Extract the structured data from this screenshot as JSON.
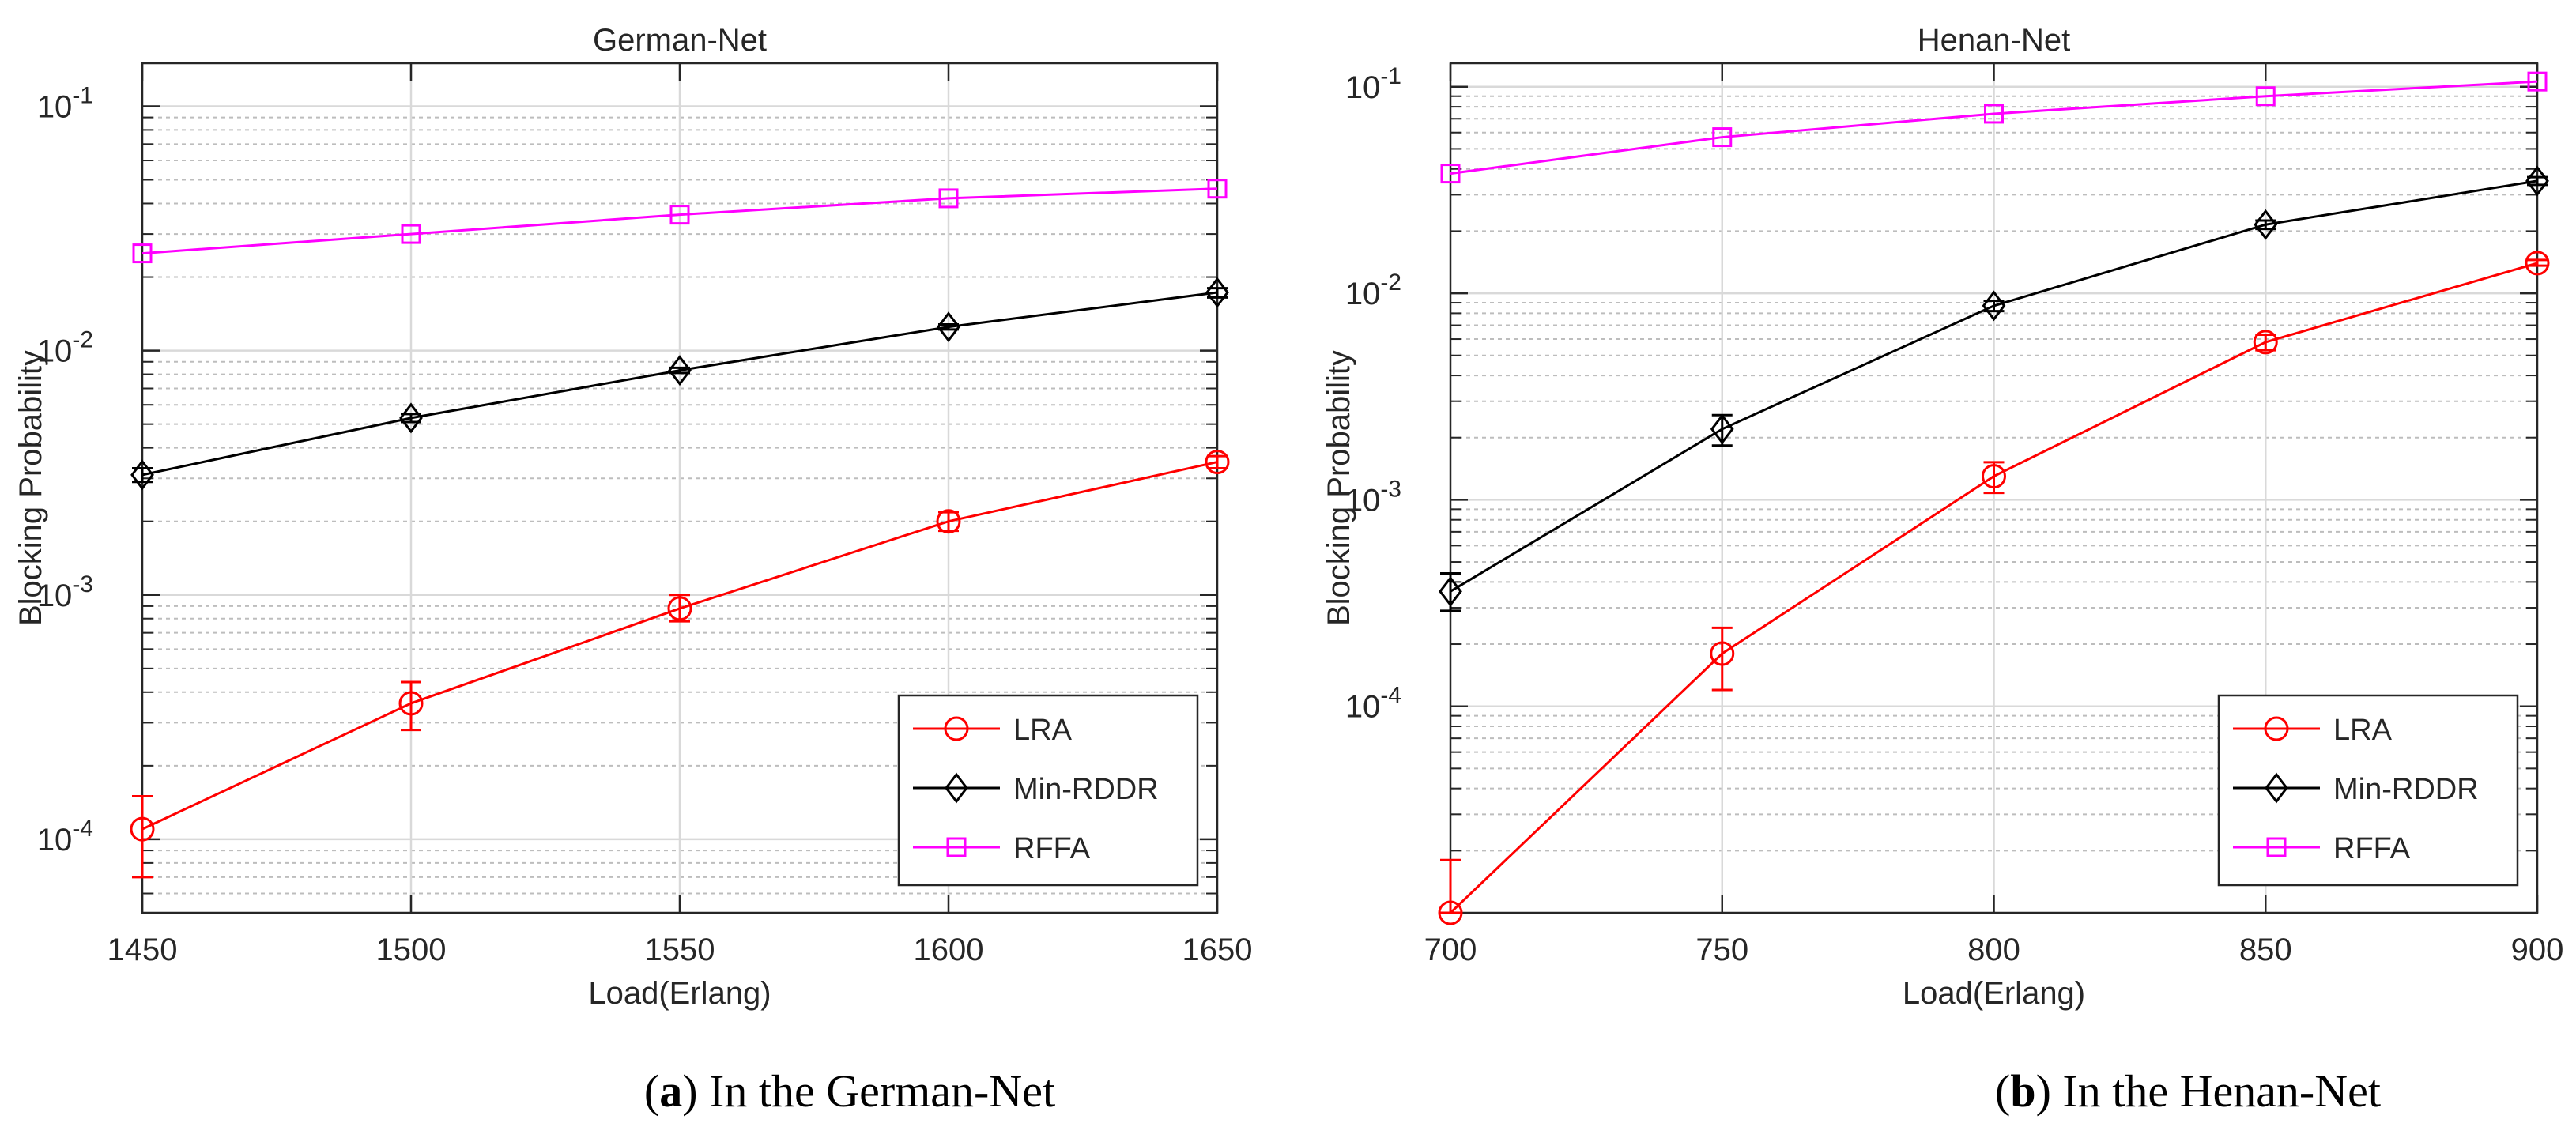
{
  "chart_data": [
    {
      "type": "line",
      "title": "German-Net",
      "xlabel": "Load(Erlang)",
      "ylabel": "Blocking Probability",
      "yscale": "log",
      "xlim": [
        1450,
        1650
      ],
      "ylim": [
        5e-05,
        0.15
      ],
      "grid": true,
      "x": [
        1450,
        1500,
        1550,
        1600,
        1650
      ],
      "x_ticks": [
        "1450",
        "1500",
        "1550",
        "1600",
        "1650"
      ],
      "y_ticks": [
        {
          "base": "10",
          "exp": "-4",
          "value": 0.0001
        },
        {
          "base": "10",
          "exp": "-3",
          "value": 0.001
        },
        {
          "base": "10",
          "exp": "-2",
          "value": 0.01
        },
        {
          "base": "10",
          "exp": "-1",
          "value": 0.1
        }
      ],
      "legend_position": "bottom-right",
      "series": [
        {
          "name": "LRA",
          "color": "#ff0000",
          "marker": "circle",
          "values": [
            0.00011,
            0.00036,
            0.00088,
            0.002,
            0.0035
          ],
          "err_low": [
            7e-05,
            0.00028,
            0.00078,
            0.00183,
            0.0033
          ],
          "err_high": [
            0.00015,
            0.00044,
            0.001,
            0.00218,
            0.0037
          ]
        },
        {
          "name": "Min-RDDR",
          "color": "#000000",
          "marker": "diamond",
          "values": [
            0.0031,
            0.0053,
            0.0083,
            0.0125,
            0.0173
          ],
          "err_low": [
            0.0029,
            0.0051,
            0.0081,
            0.0122,
            0.0165
          ],
          "err_high": [
            0.0033,
            0.0055,
            0.0085,
            0.0128,
            0.018
          ]
        },
        {
          "name": "RFFA",
          "color": "#ff00ff",
          "marker": "square",
          "values": [
            0.025,
            0.03,
            0.036,
            0.042,
            0.046
          ],
          "err_low": [
            0.025,
            0.03,
            0.036,
            0.042,
            0.046
          ],
          "err_high": [
            0.025,
            0.03,
            0.036,
            0.042,
            0.046
          ]
        }
      ],
      "caption_label": "a",
      "caption_text": ") In the German-Net"
    },
    {
      "type": "line",
      "title": "Henan-Net",
      "xlabel": "Load(Erlang)",
      "ylabel": "Blocking Probability",
      "yscale": "log",
      "xlim": [
        700,
        900
      ],
      "ylim": [
        1e-05,
        0.13
      ],
      "grid": true,
      "x": [
        700,
        750,
        800,
        850,
        900
      ],
      "x_ticks": [
        "700",
        "750",
        "800",
        "850",
        "900"
      ],
      "y_ticks": [
        {
          "base": "10",
          "exp": "-4",
          "value": 0.0001
        },
        {
          "base": "10",
          "exp": "-3",
          "value": 0.001
        },
        {
          "base": "10",
          "exp": "-2",
          "value": 0.01
        },
        {
          "base": "10",
          "exp": "-1",
          "value": 0.1
        }
      ],
      "legend_position": "bottom-right",
      "series": [
        {
          "name": "LRA",
          "color": "#ff0000",
          "marker": "circle",
          "values": [
            1e-05,
            0.00018,
            0.0013,
            0.0058,
            0.014
          ],
          "err_low": [
            1e-05,
            0.00012,
            0.00108,
            0.0053,
            0.0136
          ],
          "err_high": [
            1.8e-05,
            0.00024,
            0.00152,
            0.0063,
            0.0145
          ]
        },
        {
          "name": "Min-RDDR",
          "color": "#000000",
          "marker": "diamond",
          "values": [
            0.00036,
            0.0022,
            0.0087,
            0.0215,
            0.035
          ],
          "err_low": [
            0.00029,
            0.00183,
            0.0082,
            0.0205,
            0.0335
          ],
          "err_high": [
            0.00044,
            0.00257,
            0.0092,
            0.0225,
            0.0365
          ]
        },
        {
          "name": "RFFA",
          "color": "#ff00ff",
          "marker": "square",
          "values": [
            0.038,
            0.057,
            0.074,
            0.09,
            0.106
          ],
          "err_low": [
            0.038,
            0.057,
            0.074,
            0.09,
            0.106
          ],
          "err_high": [
            0.038,
            0.057,
            0.074,
            0.09,
            0.106
          ]
        }
      ],
      "caption_label": "b",
      "caption_text": ") In the Henan-Net"
    }
  ]
}
